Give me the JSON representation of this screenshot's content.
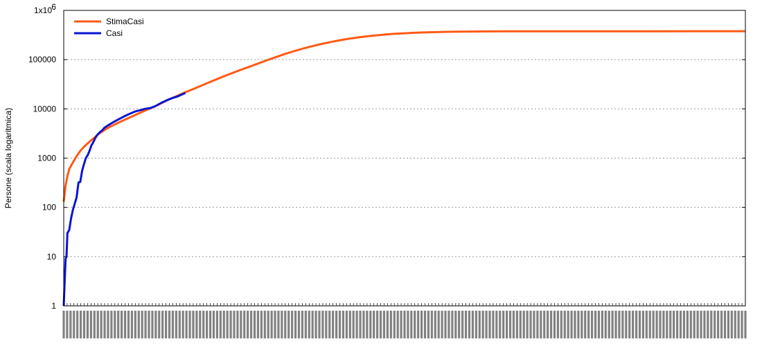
{
  "chart_data": {
    "type": "line",
    "title": "",
    "xlabel": "",
    "ylabel": "Persone (scala logaritmica)",
    "yscale": "log",
    "ylim": [
      1,
      1000000
    ],
    "y_ticks": [
      {
        "value": 1,
        "label": "1"
      },
      {
        "value": 10,
        "label": "10"
      },
      {
        "value": 100,
        "label": "100"
      },
      {
        "value": 1000,
        "label": "1000"
      },
      {
        "value": 10000,
        "label": "10000"
      },
      {
        "value": 100000,
        "label": "100000"
      },
      {
        "value": 1000000,
        "label": "1x10",
        "exponent": "6"
      }
    ],
    "x_tick_count": 200,
    "x_tick_labels": "illegible dense date labels",
    "grid": {
      "horizontal": true,
      "vertical": false,
      "style": "dotted"
    },
    "legend": {
      "position": "top-left"
    },
    "series": [
      {
        "name": "StimaCasi",
        "color": "#ff5a14",
        "points": [
          [
            0,
            130
          ],
          [
            1,
            280
          ],
          [
            2,
            430
          ],
          [
            3,
            600
          ],
          [
            5,
            820
          ],
          [
            7,
            1100
          ],
          [
            9,
            1400
          ],
          [
            11,
            1700
          ],
          [
            13,
            2000
          ],
          [
            16,
            2500
          ],
          [
            19,
            3100
          ],
          [
            22,
            3700
          ],
          [
            25,
            4300
          ],
          [
            29,
            5100
          ],
          [
            33,
            6000
          ],
          [
            37,
            7000
          ],
          [
            41,
            8200
          ],
          [
            45,
            9500
          ],
          [
            49,
            11000
          ],
          [
            53,
            13000
          ],
          [
            57,
            15500
          ],
          [
            61,
            18000
          ],
          [
            65,
            21000
          ],
          [
            70,
            25000
          ],
          [
            75,
            30000
          ],
          [
            80,
            36000
          ],
          [
            85,
            43000
          ],
          [
            90,
            51000
          ],
          [
            95,
            60000
          ],
          [
            100,
            70000
          ],
          [
            105,
            82000
          ],
          [
            110,
            96000
          ],
          [
            115,
            112000
          ],
          [
            120,
            130000
          ],
          [
            125,
            148000
          ],
          [
            130,
            168000
          ],
          [
            135,
            188000
          ],
          [
            140,
            208000
          ],
          [
            145,
            228000
          ],
          [
            150,
            248000
          ],
          [
            155,
            266000
          ],
          [
            160,
            283000
          ],
          [
            165,
            298000
          ],
          [
            170,
            312000
          ],
          [
            175,
            324000
          ],
          [
            180,
            335000
          ],
          [
            185,
            343000
          ],
          [
            190,
            350000
          ],
          [
            195,
            356000
          ],
          [
            200,
            361000
          ],
          [
            210,
            368000
          ],
          [
            220,
            372000
          ],
          [
            230,
            374000
          ],
          [
            240,
            375000
          ],
          [
            250,
            376000
          ],
          [
            265,
            377000
          ],
          [
            280,
            377000
          ],
          [
            300,
            377000
          ],
          [
            320,
            377000
          ],
          [
            340,
            378000
          ],
          [
            360,
            378000
          ],
          [
            370,
            378000
          ]
        ]
      },
      {
        "name": "Casi",
        "color": "#0a14d2",
        "points": [
          [
            0,
            1
          ],
          [
            0.5,
            3
          ],
          [
            1,
            9
          ],
          [
            1.5,
            10
          ],
          [
            2,
            30
          ],
          [
            3,
            35
          ],
          [
            4,
            60
          ],
          [
            5,
            90
          ],
          [
            6,
            120
          ],
          [
            7,
            160
          ],
          [
            8,
            320
          ],
          [
            9,
            330
          ],
          [
            10,
            560
          ],
          [
            11,
            760
          ],
          [
            12,
            1000
          ],
          [
            13,
            1150
          ],
          [
            14,
            1400
          ],
          [
            15,
            1800
          ],
          [
            16,
            2100
          ],
          [
            17,
            2500
          ],
          [
            18,
            2900
          ],
          [
            19,
            3200
          ],
          [
            20,
            3450
          ],
          [
            21,
            3700
          ],
          [
            22,
            4100
          ],
          [
            24,
            4600
          ],
          [
            27,
            5400
          ],
          [
            30,
            6200
          ],
          [
            33,
            7100
          ],
          [
            36,
            8000
          ],
          [
            39,
            8900
          ],
          [
            42,
            9500
          ],
          [
            44,
            10000
          ],
          [
            47,
            10400
          ],
          [
            50,
            11500
          ],
          [
            53,
            13300
          ],
          [
            56,
            15000
          ],
          [
            59,
            16600
          ],
          [
            62,
            18000
          ],
          [
            64,
            19500
          ],
          [
            66,
            21000
          ]
        ]
      }
    ]
  }
}
